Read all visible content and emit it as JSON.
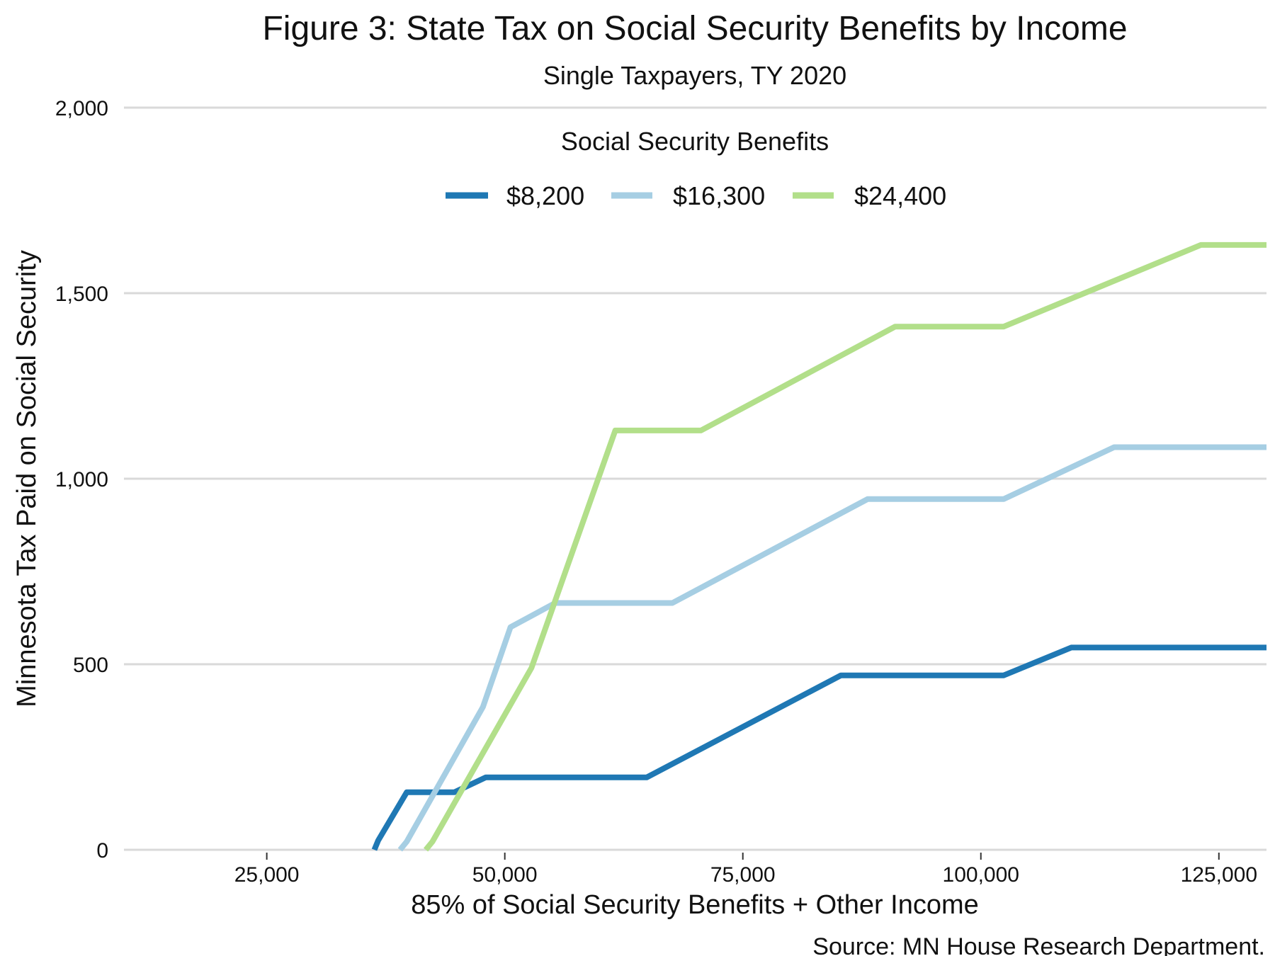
{
  "chart_data": {
    "type": "line",
    "title": "Figure 3: State Tax on Social Security Benefits by Income",
    "subtitle": "Single Taxpayers, TY 2020",
    "xlabel": "85% of Social Security Benefits + Other Income",
    "ylabel": "Minnesota Tax Paid on Social Security",
    "source": "Source: MN House Research Department.",
    "xlim": [
      10000,
      130000
    ],
    "ylim": [
      0,
      2000
    ],
    "x_ticks": [
      25000,
      50000,
      75000,
      100000,
      125000
    ],
    "x_tick_labels": [
      "25,000",
      "50,000",
      "75,000",
      "100,000",
      "125,000"
    ],
    "y_ticks": [
      0,
      500,
      1000,
      1500,
      2000
    ],
    "y_tick_labels": [
      "0",
      "500",
      "1,000",
      "1,500",
      "2,000"
    ],
    "grid": "horizontal",
    "legend": {
      "title": "Social Security Benefits",
      "placement": "top"
    },
    "series": [
      {
        "name": "$8,200",
        "color": "#1f78b4",
        "points": [
          [
            36300,
            0
          ],
          [
            36700,
            25
          ],
          [
            39700,
            155
          ],
          [
            44700,
            155
          ],
          [
            48000,
            195
          ],
          [
            64900,
            195
          ],
          [
            85300,
            470
          ],
          [
            102400,
            470
          ],
          [
            109500,
            545
          ],
          [
            130000,
            545
          ]
        ]
      },
      {
        "name": "$16,300",
        "color": "#a6cee3",
        "points": [
          [
            39000,
            0
          ],
          [
            39700,
            22
          ],
          [
            47700,
            385
          ],
          [
            50600,
            600
          ],
          [
            55300,
            665
          ],
          [
            67600,
            665
          ],
          [
            88100,
            945
          ],
          [
            102400,
            945
          ],
          [
            114000,
            1085
          ],
          [
            130000,
            1085
          ]
        ]
      },
      {
        "name": "$24,400",
        "color": "#b2df8a",
        "points": [
          [
            41700,
            0
          ],
          [
            42400,
            22
          ],
          [
            52800,
            490
          ],
          [
            61600,
            1130
          ],
          [
            70600,
            1130
          ],
          [
            91000,
            1410
          ],
          [
            102400,
            1410
          ],
          [
            123100,
            1630
          ],
          [
            130000,
            1630
          ]
        ]
      }
    ]
  }
}
